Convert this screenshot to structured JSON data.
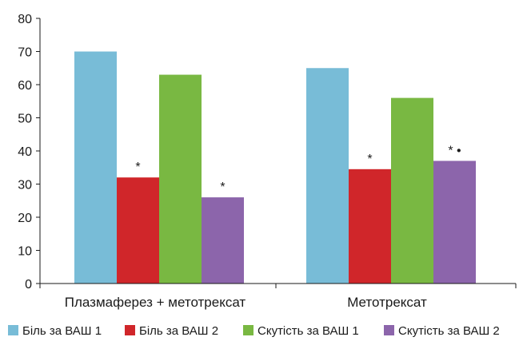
{
  "chart_data": {
    "type": "bar",
    "categories": [
      "Плазмаферез + метотрексат",
      "Метотрексат"
    ],
    "series": [
      {
        "name": "Біль за ВАШ 1",
        "color": "#78bcd7",
        "values": [
          70,
          65
        ]
      },
      {
        "name": "Біль за ВАШ 2",
        "color": "#d0262a",
        "values": [
          32,
          34.5
        ]
      },
      {
        "name": "Скутість за ВАШ 1",
        "color": "#79b842",
        "values": [
          63,
          56
        ]
      },
      {
        "name": "Скутість за ВАШ 2",
        "color": "#8c65ab",
        "values": [
          26,
          37
        ]
      }
    ],
    "annotations": [
      {
        "category": 0,
        "series": 1,
        "text": "*"
      },
      {
        "category": 0,
        "series": 3,
        "text": "*"
      },
      {
        "category": 1,
        "series": 1,
        "text": "*"
      },
      {
        "category": 1,
        "series": 3,
        "text": "* •"
      }
    ],
    "ylim": [
      0,
      80
    ],
    "yticks": [
      0,
      10,
      20,
      30,
      40,
      50,
      60,
      70,
      80
    ],
    "title": "",
    "xlabel": "",
    "ylabel": "",
    "grid": false,
    "legend_position": "bottom"
  }
}
